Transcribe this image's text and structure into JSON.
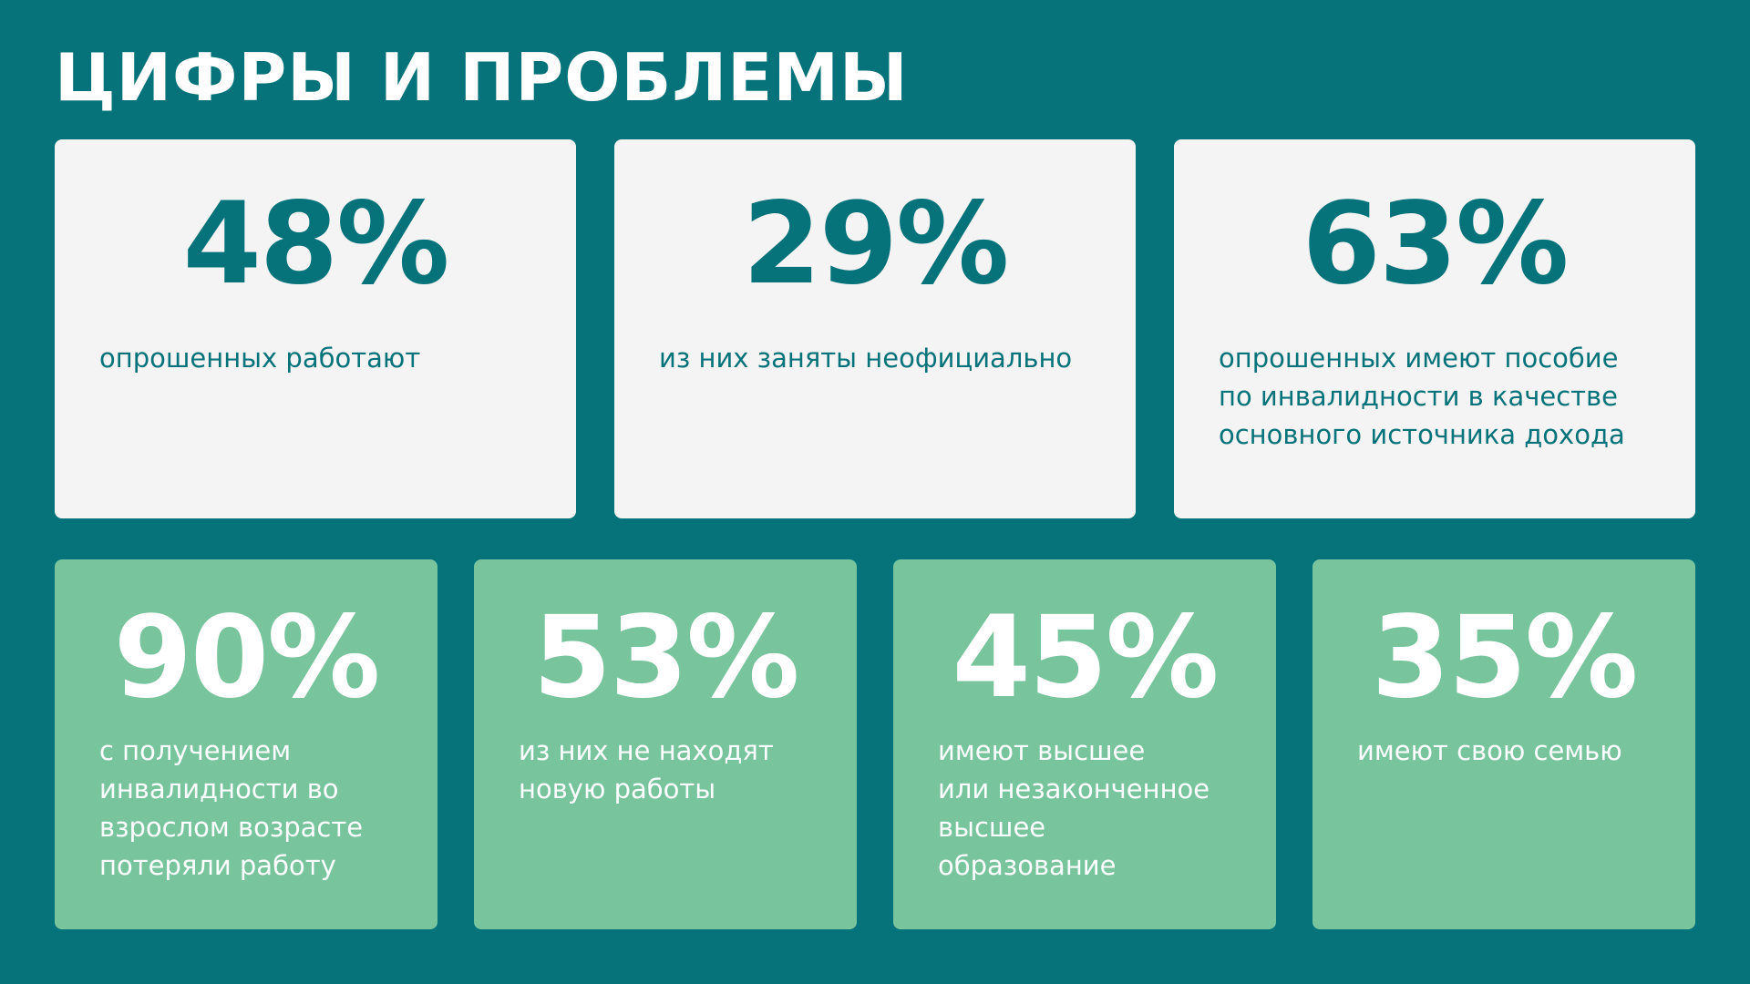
{
  "title": "ЦИФРЫ И ПРОБЛЕМЫ",
  "colors": {
    "background": "#06737a",
    "top_card": "#f4f4f4",
    "bottom_card": "#78c49d",
    "top_text": "#06737a",
    "bottom_text": "#ffffff"
  },
  "top_cards": [
    {
      "value": "48%",
      "text": "опрошенных работают"
    },
    {
      "value": "29%",
      "text": "из них заняты неофициально"
    },
    {
      "value": "63%",
      "text": "опрошенных имеют пособие\nпо инвалидности в качестве\nосновного источника дохода"
    }
  ],
  "bottom_cards": [
    {
      "value": "90%",
      "text": "с получением\nинвалидности во\nвзрослом возрасте\nпотеряли работу"
    },
    {
      "value": "53%",
      "text": "из них не находят\nновую работы"
    },
    {
      "value": "45%",
      "text": "имеют высшее\nили незаконченное\nвысшее\nобразование"
    },
    {
      "value": "35%",
      "text": "имеют свою семью"
    }
  ]
}
